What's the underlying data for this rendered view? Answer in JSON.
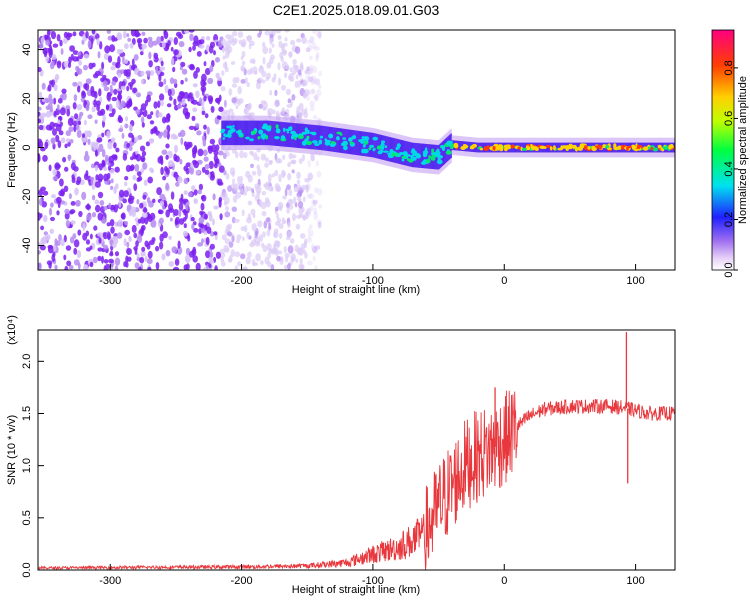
{
  "title": "C2E1.2025.018.09.01.G03",
  "chart_data": [
    {
      "type": "heatmap",
      "xlabel": "Height of straight line (km)",
      "ylabel": "Frequency (Hz)",
      "xlim": [
        -355,
        130
      ],
      "ylim": [
        -50,
        48
      ],
      "xticks": [
        -300,
        -200,
        -100,
        0,
        100
      ],
      "yticks": [
        -40,
        -20,
        0,
        20,
        40
      ],
      "ridge": [
        {
          "x": -215,
          "f": 6
        },
        {
          "x": -180,
          "f": 6
        },
        {
          "x": -140,
          "f": 4
        },
        {
          "x": -100,
          "f": 1
        },
        {
          "x": -70,
          "f": -3
        },
        {
          "x": -50,
          "f": -4
        },
        {
          "x": -40,
          "f": 1
        },
        {
          "x": -20,
          "f": 0
        },
        {
          "x": 0,
          "f": 0
        },
        {
          "x": 50,
          "f": 0
        },
        {
          "x": 90,
          "f": 0
        },
        {
          "x": 130,
          "f": 0
        }
      ],
      "colorbar": {
        "label": "Normalized spectral amplitude",
        "range": [
          0.0,
          0.95
        ],
        "ticks": [
          0.0,
          0.2,
          0.4,
          0.6,
          0.8
        ]
      },
      "grid": false
    },
    {
      "type": "line",
      "xlabel": "Height of straight line (km)",
      "ylabel": "SNR (10 * v/v)",
      "scale_label": "(x10⁴)",
      "xlim": [
        -355,
        130
      ],
      "ylim": [
        0,
        2.3
      ],
      "xticks": [
        -300,
        -200,
        -100,
        0,
        100
      ],
      "yticks": [
        0.0,
        0.5,
        1.0,
        1.5,
        2.0
      ],
      "color": "#e8383d",
      "envelope": [
        {
          "x": -355,
          "y": 0.02
        },
        {
          "x": -200,
          "y": 0.03
        },
        {
          "x": -150,
          "y": 0.04
        },
        {
          "x": -120,
          "y": 0.07
        },
        {
          "x": -100,
          "y": 0.15
        },
        {
          "x": -80,
          "y": 0.22
        },
        {
          "x": -60,
          "y": 0.35
        },
        {
          "x": -50,
          "y": 0.6
        },
        {
          "x": -40,
          "y": 0.8
        },
        {
          "x": -30,
          "y": 1.0
        },
        {
          "x": -20,
          "y": 1.1
        },
        {
          "x": -10,
          "y": 1.15
        },
        {
          "x": 0,
          "y": 1.25
        },
        {
          "x": 10,
          "y": 1.38
        },
        {
          "x": 20,
          "y": 1.48
        },
        {
          "x": 30,
          "y": 1.54
        },
        {
          "x": 50,
          "y": 1.57
        },
        {
          "x": 80,
          "y": 1.57
        },
        {
          "x": 93,
          "y": 1.55
        },
        {
          "x": 110,
          "y": 1.5
        },
        {
          "x": 130,
          "y": 1.5
        }
      ],
      "spikes": [
        {
          "x": -7,
          "y": 1.75
        },
        {
          "x": 93,
          "y": 2.28
        },
        {
          "x": 94,
          "y": 0.83
        }
      ],
      "grid": false
    }
  ]
}
